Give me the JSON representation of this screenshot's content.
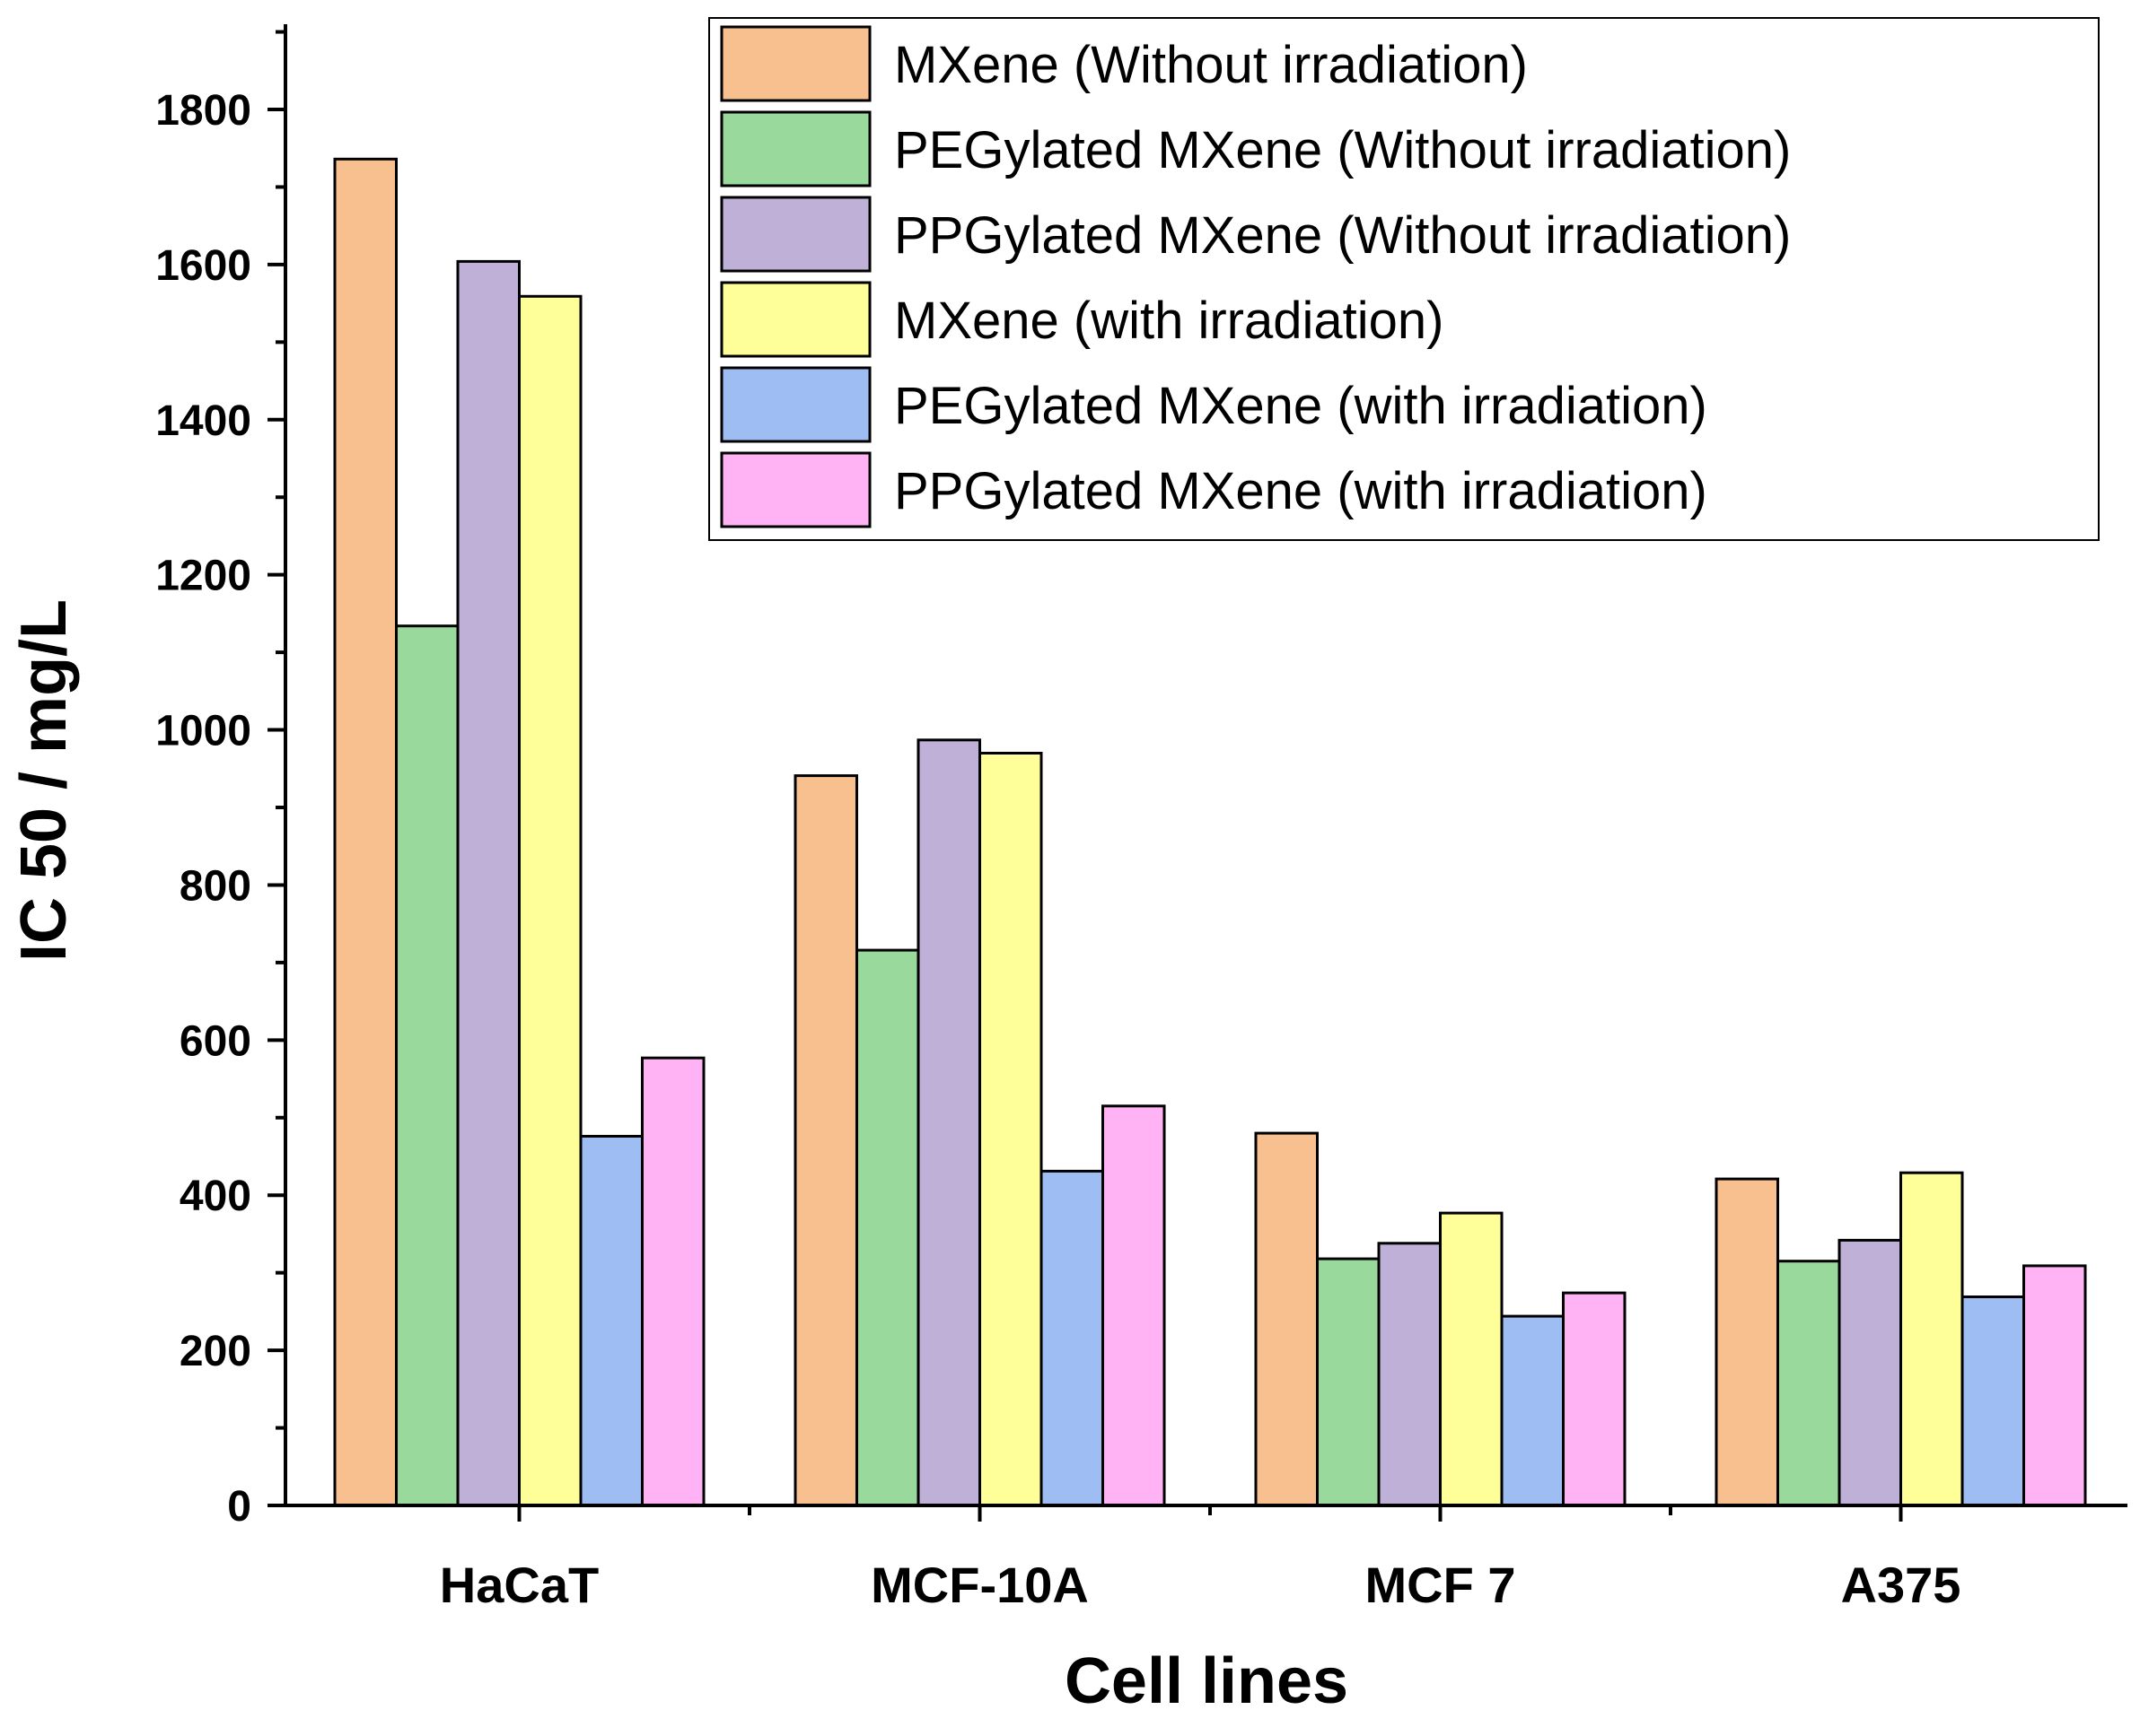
{
  "chart_data": {
    "type": "bar",
    "title": "",
    "xlabel": "Cell lines",
    "ylabel": "IC 50 / mg/L",
    "ylim": [
      0,
      1900
    ],
    "yticks": [
      0,
      200,
      400,
      600,
      800,
      1000,
      1200,
      1400,
      1600,
      1800
    ],
    "grid": false,
    "legend_position": "top-right",
    "categories": [
      "HaCaT",
      "MCF-10A",
      "MCF 7",
      "A375"
    ],
    "series": [
      {
        "name": "MXene (Without irradiation)",
        "color": "#F9C08F",
        "values": [
          1736,
          941,
          480,
          421
        ]
      },
      {
        "name": "PEGylated MXene (Without irradiation)",
        "color": "#99D99B",
        "values": [
          1134,
          716,
          318,
          315
        ]
      },
      {
        "name": "PPGylated MXene (Without irradiation)",
        "color": "#BEB0D6",
        "values": [
          1604,
          987,
          338,
          342
        ]
      },
      {
        "name": "MXene (with irradiation)",
        "color": "#FFFF99",
        "values": [
          1559,
          970,
          377,
          429
        ]
      },
      {
        "name": "PEGylated MXene (with irradiation)",
        "color": "#9EBEF3",
        "values": [
          476,
          431,
          244,
          269
        ]
      },
      {
        "name": "PPGylated MXene (with irradiation)",
        "color": "#FFB3F5",
        "values": [
          577,
          515,
          274,
          309
        ]
      }
    ]
  }
}
